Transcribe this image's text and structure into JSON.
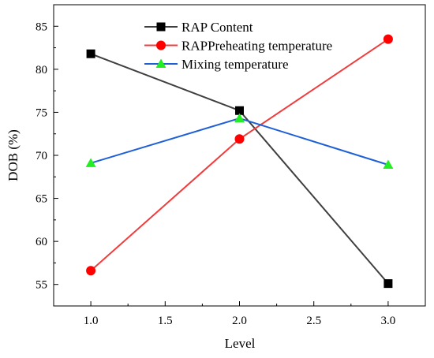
{
  "chart_data": {
    "type": "line",
    "title": "",
    "xlabel": "Level",
    "ylabel": "DOB (%)",
    "xlim": [
      0.75,
      3.25
    ],
    "ylim": [
      52.5,
      87.5
    ],
    "x_ticks": [
      1.0,
      1.5,
      2.0,
      2.5,
      3.0
    ],
    "x_tick_labels": [
      "1.0",
      "1.5",
      "2.0",
      "2.5",
      "3.0"
    ],
    "y_ticks": [
      55,
      60,
      65,
      70,
      75,
      80,
      85
    ],
    "y_tick_labels": [
      "55",
      "60",
      "65",
      "70",
      "75",
      "80",
      "85"
    ],
    "grid": false,
    "legend_position": "top-center",
    "x": [
      1.0,
      2.0,
      3.0
    ],
    "series": [
      {
        "name": "RAP Content",
        "values": [
          81.8,
          75.2,
          55.1
        ],
        "color": "#3f3f3f",
        "marker": "square",
        "marker_color": "#000000"
      },
      {
        "name": "RAPPreheating temperature",
        "values": [
          56.6,
          71.9,
          83.5
        ],
        "color": "#f03c3c",
        "marker": "circle",
        "marker_color": "#ff0000"
      },
      {
        "name": "Mixing temperature",
        "values": [
          69.1,
          74.3,
          68.9
        ],
        "color": "#1f5fd6",
        "marker": "triangle",
        "marker_color": "#22ee22"
      }
    ]
  }
}
